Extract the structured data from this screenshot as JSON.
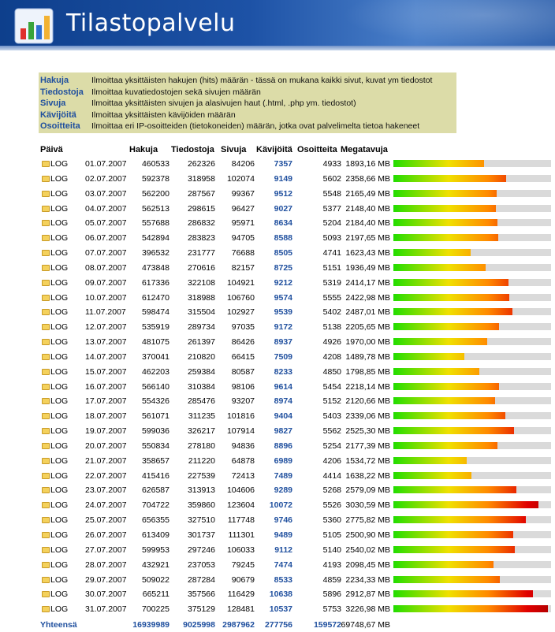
{
  "app": {
    "title": "Tilastopalvelu"
  },
  "legend": [
    {
      "term": "Hakuja",
      "desc": "Ilmoittaa yksittäisten hakujen (hits) määrän - tässä on mukana kaikki sivut, kuvat ym tiedostot"
    },
    {
      "term": "Tiedostoja",
      "desc": "Ilmoittaa kuvatiedostojen sekä sivujen määrän"
    },
    {
      "term": "Sivuja",
      "desc": "Ilmoittaa yksittäisten sivujen ja alasivujen haut (.html, .php ym. tiedostot)"
    },
    {
      "term": "Kävijöitä",
      "desc": "Ilmoittaa yksittäisten kävijöiden määrän"
    },
    {
      "term": "Osoitteita",
      "desc": "Ilmoittaa eri IP-osoitteiden (tietokoneiden) määrän, jotka ovat palvelimelta tietoa hakeneet"
    }
  ],
  "table": {
    "headers": {
      "date": "Päivä",
      "hits": "Hakuja",
      "files": "Tiedostoja",
      "pages": "Sivuja",
      "visits": "Kävijöitä",
      "addresses": "Osoitteita",
      "traffic": "Megatavuja"
    },
    "log_label": "LOG",
    "bar_max_mb": 3300,
    "rows": [
      {
        "date": "01.07.2007",
        "hits": "460533",
        "files": "262326",
        "pages": "84206",
        "visits": "7357",
        "addresses": "4933",
        "mb": "1893,16 MB",
        "mb_value": 1893.16
      },
      {
        "date": "02.07.2007",
        "hits": "592378",
        "files": "318958",
        "pages": "102074",
        "visits": "9149",
        "addresses": "5602",
        "mb": "2358,66 MB",
        "mb_value": 2358.66
      },
      {
        "date": "03.07.2007",
        "hits": "562200",
        "files": "287567",
        "pages": "99367",
        "visits": "9512",
        "addresses": "5548",
        "mb": "2165,49 MB",
        "mb_value": 2165.49
      },
      {
        "date": "04.07.2007",
        "hits": "562513",
        "files": "298615",
        "pages": "96427",
        "visits": "9027",
        "addresses": "5377",
        "mb": "2148,40 MB",
        "mb_value": 2148.4
      },
      {
        "date": "05.07.2007",
        "hits": "557688",
        "files": "286832",
        "pages": "95971",
        "visits": "8634",
        "addresses": "5204",
        "mb": "2184,40 MB",
        "mb_value": 2184.4
      },
      {
        "date": "06.07.2007",
        "hits": "542894",
        "files": "283823",
        "pages": "94705",
        "visits": "8588",
        "addresses": "5093",
        "mb": "2197,65 MB",
        "mb_value": 2197.65
      },
      {
        "date": "07.07.2007",
        "hits": "396532",
        "files": "231777",
        "pages": "76688",
        "visits": "8505",
        "addresses": "4741",
        "mb": "1623,43 MB",
        "mb_value": 1623.43
      },
      {
        "date": "08.07.2007",
        "hits": "473848",
        "files": "270616",
        "pages": "82157",
        "visits": "8725",
        "addresses": "5151",
        "mb": "1936,49 MB",
        "mb_value": 1936.49
      },
      {
        "date": "09.07.2007",
        "hits": "617336",
        "files": "322108",
        "pages": "104921",
        "visits": "9212",
        "addresses": "5319",
        "mb": "2414,17 MB",
        "mb_value": 2414.17
      },
      {
        "date": "10.07.2007",
        "hits": "612470",
        "files": "318988",
        "pages": "106760",
        "visits": "9574",
        "addresses": "5555",
        "mb": "2422,98 MB",
        "mb_value": 2422.98
      },
      {
        "date": "11.07.2007",
        "hits": "598474",
        "files": "315504",
        "pages": "102927",
        "visits": "9539",
        "addresses": "5402",
        "mb": "2487,01 MB",
        "mb_value": 2487.01
      },
      {
        "date": "12.07.2007",
        "hits": "535919",
        "files": "289734",
        "pages": "97035",
        "visits": "9172",
        "addresses": "5138",
        "mb": "2205,65 MB",
        "mb_value": 2205.65
      },
      {
        "date": "13.07.2007",
        "hits": "481075",
        "files": "261397",
        "pages": "86426",
        "visits": "8937",
        "addresses": "4926",
        "mb": "1970,00 MB",
        "mb_value": 1970.0
      },
      {
        "date": "14.07.2007",
        "hits": "370041",
        "files": "210820",
        "pages": "66415",
        "visits": "7509",
        "addresses": "4208",
        "mb": "1489,78 MB",
        "mb_value": 1489.78
      },
      {
        "date": "15.07.2007",
        "hits": "462203",
        "files": "259384",
        "pages": "80587",
        "visits": "8233",
        "addresses": "4850",
        "mb": "1798,85 MB",
        "mb_value": 1798.85
      },
      {
        "date": "16.07.2007",
        "hits": "566140",
        "files": "310384",
        "pages": "98106",
        "visits": "9614",
        "addresses": "5454",
        "mb": "2218,14 MB",
        "mb_value": 2218.14
      },
      {
        "date": "17.07.2007",
        "hits": "554326",
        "files": "285476",
        "pages": "93207",
        "visits": "8974",
        "addresses": "5152",
        "mb": "2120,66 MB",
        "mb_value": 2120.66
      },
      {
        "date": "18.07.2007",
        "hits": "561071",
        "files": "311235",
        "pages": "101816",
        "visits": "9404",
        "addresses": "5403",
        "mb": "2339,06 MB",
        "mb_value": 2339.06
      },
      {
        "date": "19.07.2007",
        "hits": "599036",
        "files": "326217",
        "pages": "107914",
        "visits": "9827",
        "addresses": "5562",
        "mb": "2525,30 MB",
        "mb_value": 2525.3
      },
      {
        "date": "20.07.2007",
        "hits": "550834",
        "files": "278180",
        "pages": "94836",
        "visits": "8896",
        "addresses": "5254",
        "mb": "2177,39 MB",
        "mb_value": 2177.39
      },
      {
        "date": "21.07.2007",
        "hits": "358657",
        "files": "211220",
        "pages": "64878",
        "visits": "6989",
        "addresses": "4206",
        "mb": "1534,72 MB",
        "mb_value": 1534.72
      },
      {
        "date": "22.07.2007",
        "hits": "415416",
        "files": "227539",
        "pages": "72413",
        "visits": "7489",
        "addresses": "4414",
        "mb": "1638,22 MB",
        "mb_value": 1638.22
      },
      {
        "date": "23.07.2007",
        "hits": "626587",
        "files": "313913",
        "pages": "104606",
        "visits": "9289",
        "addresses": "5268",
        "mb": "2579,09 MB",
        "mb_value": 2579.09
      },
      {
        "date": "24.07.2007",
        "hits": "704722",
        "files": "359860",
        "pages": "123604",
        "visits": "10072",
        "addresses": "5526",
        "mb": "3030,59 MB",
        "mb_value": 3030.59
      },
      {
        "date": "25.07.2007",
        "hits": "656355",
        "files": "327510",
        "pages": "117748",
        "visits": "9746",
        "addresses": "5360",
        "mb": "2775,82 MB",
        "mb_value": 2775.82
      },
      {
        "date": "26.07.2007",
        "hits": "613409",
        "files": "301737",
        "pages": "111301",
        "visits": "9489",
        "addresses": "5105",
        "mb": "2500,90 MB",
        "mb_value": 2500.9
      },
      {
        "date": "27.07.2007",
        "hits": "599953",
        "files": "297246",
        "pages": "106033",
        "visits": "9112",
        "addresses": "5140",
        "mb": "2540,02 MB",
        "mb_value": 2540.02
      },
      {
        "date": "28.07.2007",
        "hits": "432921",
        "files": "237053",
        "pages": "79245",
        "visits": "7474",
        "addresses": "4193",
        "mb": "2098,45 MB",
        "mb_value": 2098.45
      },
      {
        "date": "29.07.2007",
        "hits": "509022",
        "files": "287284",
        "pages": "90679",
        "visits": "8533",
        "addresses": "4859",
        "mb": "2234,33 MB",
        "mb_value": 2234.33
      },
      {
        "date": "30.07.2007",
        "hits": "665211",
        "files": "357566",
        "pages": "116429",
        "visits": "10638",
        "addresses": "5896",
        "mb": "2912,87 MB",
        "mb_value": 2912.87
      },
      {
        "date": "31.07.2007",
        "hits": "700225",
        "files": "375129",
        "pages": "128481",
        "visits": "10537",
        "addresses": "5753",
        "mb": "3226,98 MB",
        "mb_value": 3226.98
      }
    ],
    "totals": {
      "label": "Yhteensä",
      "hits": "16939989",
      "files": "9025998",
      "pages": "2987962",
      "visits": "277756",
      "addresses": "159572",
      "mb": "69748,67 MB"
    }
  },
  "colors": {
    "header_dark": "#0e3f8c",
    "header_light": "#4a7fc9",
    "legend_bg": "#dcdca8",
    "link_blue": "#1f4f9e",
    "bar_track": "#dadada"
  }
}
